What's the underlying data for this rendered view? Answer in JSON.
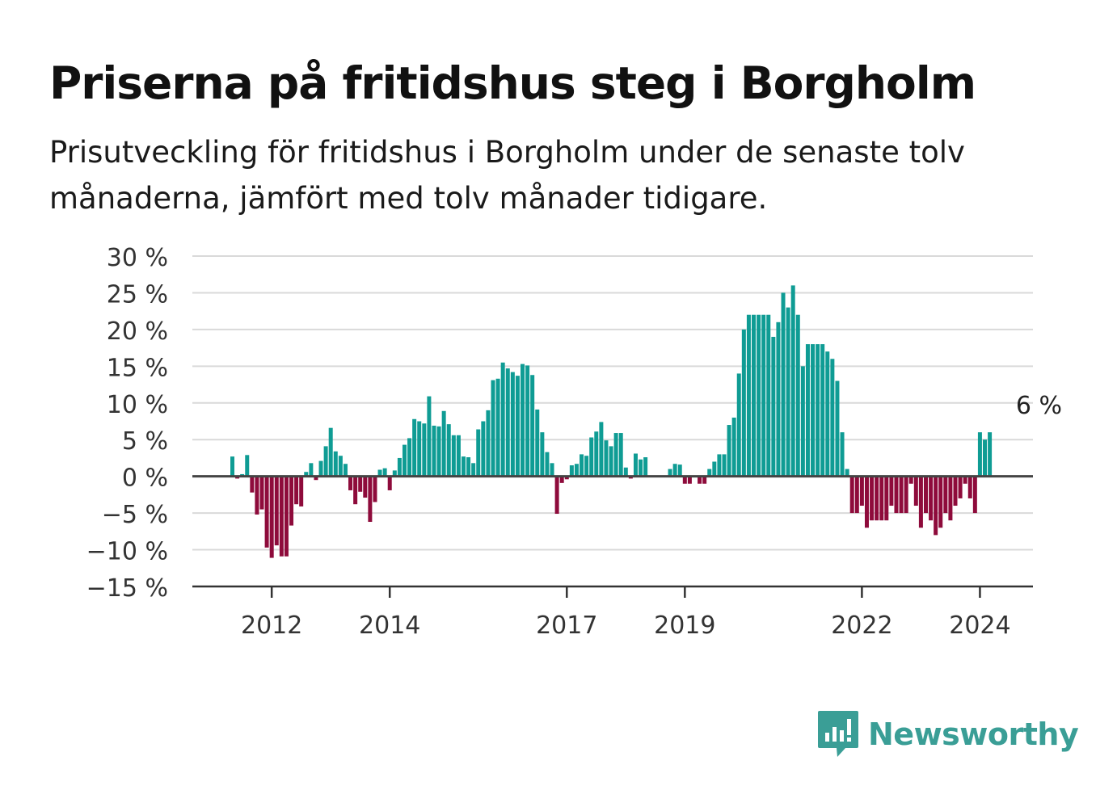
{
  "title": "Priserna på fritidshus steg i Borgholm",
  "subtitle": "Prisutveckling för fritidshus i Borgholm under de senaste tolv månaderna, jämfört med tolv månader tidigare.",
  "brand": {
    "name": "Newsworthy",
    "icon": "bar-chart-speech-bubble-icon",
    "color": "#3a9e96"
  },
  "colors": {
    "positive": "#0f9c94",
    "negative": "#8e0b3b",
    "grid": "#d9d9d9",
    "axis": "#333333",
    "text": "#333333"
  },
  "chart_data": {
    "type": "bar",
    "title": "Priserna på fritidshus steg i Borgholm",
    "xlabel": "",
    "ylabel": "",
    "ylim": [
      -15,
      30
    ],
    "yticks": [
      30,
      25,
      20,
      15,
      10,
      5,
      0,
      -5,
      -10,
      -15
    ],
    "ytick_labels": [
      "30 %",
      "25 %",
      "20 %",
      "15 %",
      "10 %",
      "5 %",
      "0 %",
      "−5 %",
      "−10 %",
      "−15 %"
    ],
    "xtick_labels": [
      {
        "label": "2012",
        "index": 8
      },
      {
        "label": "2014",
        "index": 32
      },
      {
        "label": "2017",
        "index": 68
      },
      {
        "label": "2019",
        "index": 92
      },
      {
        "label": "2022",
        "index": 128
      },
      {
        "label": "2024",
        "index": 152
      }
    ],
    "grid": true,
    "annotation": {
      "text": "6 %",
      "index": 164
    },
    "values": [
      2.7,
      -0.3,
      0.3,
      2.9,
      -2.2,
      -5.2,
      -4.5,
      -9.7,
      -11.1,
      -9.4,
      -10.9,
      -10.9,
      -6.7,
      -3.8,
      -4.1,
      0.6,
      1.8,
      -0.5,
      2.1,
      4.1,
      6.6,
      3.4,
      2.8,
      1.7,
      -1.9,
      -3.8,
      -2.1,
      -2.9,
      -6.2,
      -3.5,
      0.9,
      1.1,
      -1.9,
      0.8,
      2.5,
      4.3,
      5.2,
      7.8,
      7.5,
      7.2,
      10.9,
      6.9,
      6.8,
      8.9,
      7.1,
      5.6,
      5.6,
      2.7,
      2.6,
      1.8,
      6.4,
      7.5,
      9.0,
      13.1,
      13.3,
      15.5,
      14.7,
      14.2,
      13.7,
      15.3,
      15.1,
      13.8,
      9.1,
      6.0,
      3.3,
      1.8,
      -5.1,
      -0.9,
      -0.4,
      1.5,
      1.7,
      3.0,
      2.8,
      5.3,
      6.1,
      7.4,
      4.9,
      4.1,
      5.9,
      5.9,
      1.2,
      -0.3,
      3.1,
      2.3,
      2.6,
      0,
      0,
      0,
      0,
      1.0,
      1.7,
      1.6,
      -1.0,
      -1.0,
      0,
      -1.0,
      -1.0,
      1.0,
      2.0,
      3.0,
      3.0,
      7.0,
      8.0,
      14.0,
      20.0,
      22.0,
      22.0,
      22.0,
      22.0,
      22.0,
      19.0,
      21.0,
      25.0,
      23.0,
      26.0,
      22.0,
      15.0,
      18.0,
      18.0,
      18.0,
      18.0,
      17.0,
      16.0,
      13.0,
      6.0,
      1.0,
      -5.0,
      -5.0,
      -4.0,
      -7.0,
      -6.0,
      -6.0,
      -6.0,
      -6.0,
      -4.0,
      -5.0,
      -5.0,
      -5.0,
      -1.0,
      -4.0,
      -7.0,
      -5.0,
      -6.0,
      -8.0,
      -7.0,
      -5.0,
      -6.0,
      -4.0,
      -3.0,
      -1.0,
      -3.0,
      -5.0,
      6.0,
      5.0,
      6.0
    ]
  }
}
